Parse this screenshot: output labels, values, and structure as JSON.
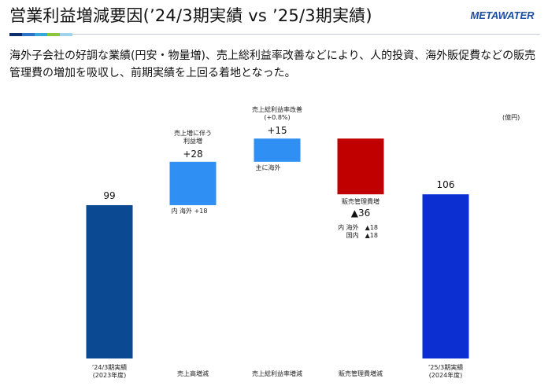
{
  "header": {
    "title": "営業利益増減要因(’24/3期実績 vs ’25/3期実績)",
    "logo_text": "METAWATER",
    "accent_colors": [
      "#0d2c6c",
      "#2a73c8",
      "#38a8dc",
      "#8cc63f",
      "#9fd3ee"
    ]
  },
  "summary": "海外子会社の好調な業績(円安・物量増)、売上総利益率改善などにより、人的投資、海外販促費などの販売管理費の増加を吸収し、前期実績を上回る着地となった。",
  "unit": "(億円)",
  "chart_data": {
    "type": "bar",
    "subtype": "waterfall",
    "ylim": [
      0,
      130
    ],
    "categories": [
      "’24/3期実績\n(2023年度)",
      "売上高増減",
      "売上総利益率増減",
      "販売管理費増減",
      "’25/3期実績\n(2024年度)"
    ],
    "steps": [
      {
        "kind": "total",
        "value": 99,
        "label": "99",
        "color": "#0b4a93"
      },
      {
        "kind": "delta",
        "value": 28,
        "label": "+28",
        "color": "#2f8ff2",
        "note": "売上増に伴う\n利益増",
        "sub": [
          "内 海外 +18"
        ]
      },
      {
        "kind": "delta",
        "value": 15,
        "label": "+15",
        "color": "#2f8ff2",
        "note": "売上総利益率改善\n(+0.8%)",
        "sub": [
          "主に海外"
        ]
      },
      {
        "kind": "delta",
        "value": -36,
        "label": "▲36",
        "color": "#c00000",
        "note": "販売管理費増",
        "sub": [
          "内 海外　▲18",
          "国内　▲18"
        ]
      },
      {
        "kind": "total",
        "value": 106,
        "label": "106",
        "color": "#0b2fd1"
      }
    ]
  }
}
